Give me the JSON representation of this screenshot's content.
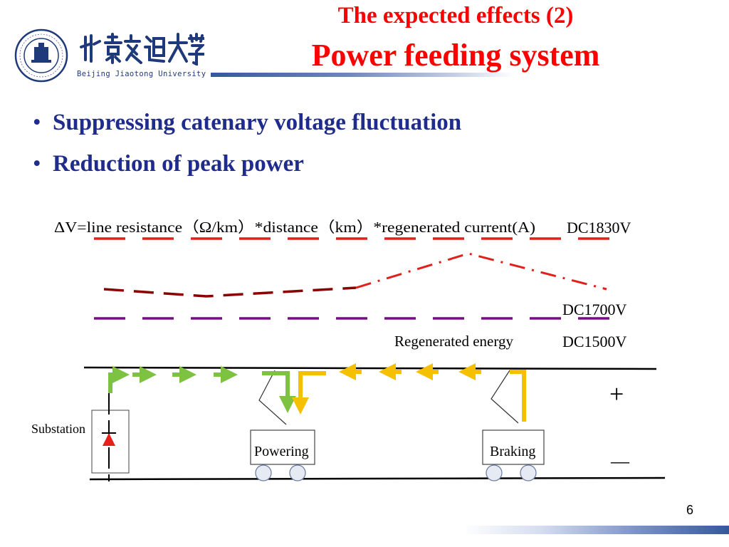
{
  "header": {
    "logo_en": "Beijing Jiaotong University",
    "title_line1": "The expected effects (2)",
    "title_line2": "Power feeding system"
  },
  "bullets": [
    "Suppressing catenary voltage fluctuation",
    "Reduction of peak power"
  ],
  "diagram": {
    "formula": "ΔV=line resistance（Ω/km）*distance（km）*regenerated current(A)",
    "voltage_top": "DC1830V",
    "voltage_mid": "DC1700V",
    "voltage_base": "DC1500V",
    "regen_label": "Regenerated energy",
    "substation_label": "Substation",
    "powering_label": "Powering",
    "braking_label": "Braking",
    "plus_sign": "+",
    "minus_sign": "—"
  },
  "colors": {
    "title": "#ff0000",
    "bullet_text": "#1f2c8c",
    "upper_limit_line": "#e0201a",
    "profile_line": "#8b0000",
    "nominal_line": "#7a0a8a",
    "powering_arrow": "#7ec242",
    "regen_arrow": "#f5c000",
    "diode": "#e8201a"
  },
  "footer": {
    "page_number": "6"
  }
}
